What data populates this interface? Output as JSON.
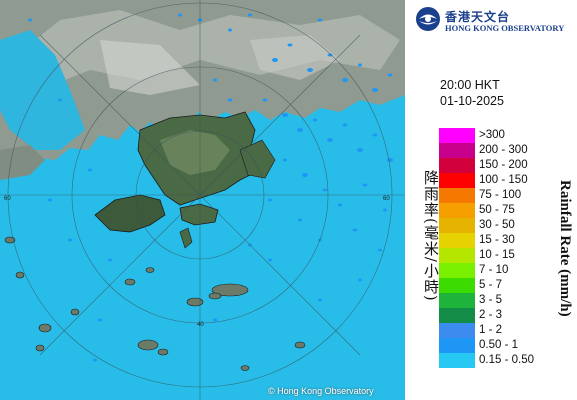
{
  "organization": {
    "name_cn": "香港天文台",
    "name_en": "HONG KONG OBSERVATORY"
  },
  "timestamp": {
    "time": "20:00 HKT",
    "date": "01-10-2025"
  },
  "map": {
    "copyright": "© Hong Kong Observatory",
    "range_ring_labels": [
      "60",
      "60",
      "40"
    ]
  },
  "legend": {
    "title_cn": "降雨率(毫米/小時)",
    "title_en": "Rainfall Rate (mm/h)",
    "items": [
      {
        "label": ">300",
        "color": "#ff00ff"
      },
      {
        "label": "200 - 300",
        "color": "#c8008c"
      },
      {
        "label": "150 - 200",
        "color": "#d2003c"
      },
      {
        "label": "100 - 150",
        "color": "#ff0000"
      },
      {
        "label": "75 - 100",
        "color": "#f57800"
      },
      {
        "label": "50 - 75",
        "color": "#f5a000"
      },
      {
        "label": "30 - 50",
        "color": "#e6b400"
      },
      {
        "label": "15 - 30",
        "color": "#e6d200"
      },
      {
        "label": "10 - 15",
        "color": "#b4e600"
      },
      {
        "label": "7 - 10",
        "color": "#78f000"
      },
      {
        "label": "5 - 7",
        "color": "#3cdc00"
      },
      {
        "label": "3 - 5",
        "color": "#1eb43c"
      },
      {
        "label": "2 - 3",
        "color": "#128c46"
      },
      {
        "label": "1 - 2",
        "color": "#3c8cf0"
      },
      {
        "label": "0.50 - 1",
        "color": "#1e96f5"
      },
      {
        "label": "0.15 - 0.50",
        "color": "#28c8f5"
      }
    ]
  }
}
